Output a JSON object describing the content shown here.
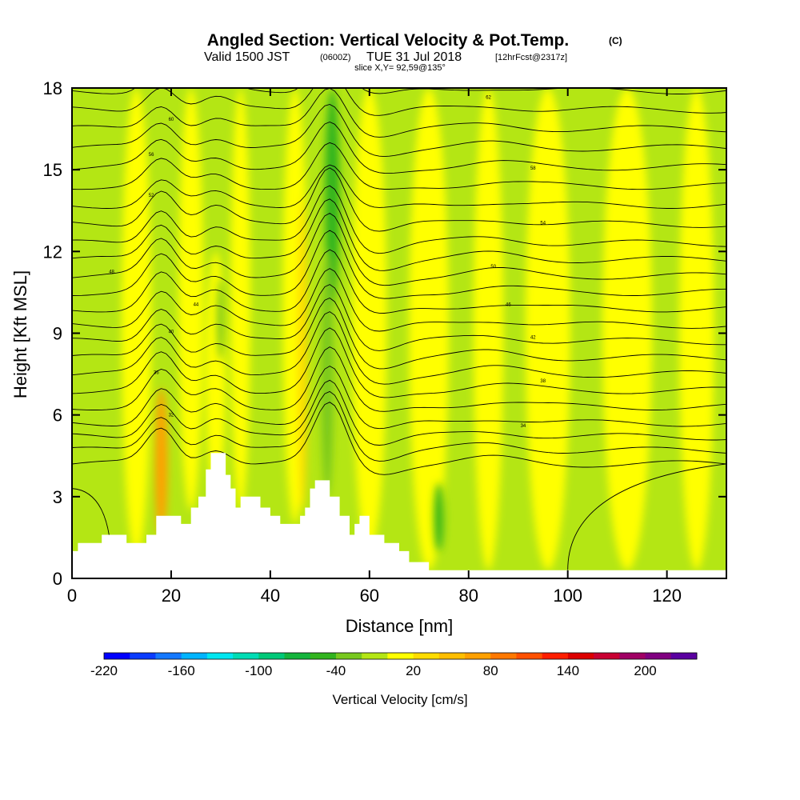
{
  "header": {
    "title": "Angled Section: Vertical Velocity & Pot.Temp.",
    "title_unit": "(C)",
    "valid_prefix": "Valid 1500 JST",
    "valid_utc": "(0600Z)",
    "valid_date": "TUE 31 Jul 2018",
    "forecast": "[12hrFcst@2317z]",
    "slice": "slice X,Y= 92,59@135°"
  },
  "chart_data": {
    "type": "heatmap",
    "xlabel": "Distance [nm]",
    "ylabel": "Height [Kft MSL]",
    "xlim": [
      0,
      132
    ],
    "ylim": [
      0,
      18
    ],
    "x_ticks": [
      0,
      20,
      40,
      60,
      80,
      100,
      120
    ],
    "y_ticks": [
      0,
      3,
      6,
      9,
      12,
      15,
      18
    ],
    "x_tick_labels": [
      "0",
      "20",
      "40",
      "60",
      "80",
      "100",
      "120"
    ],
    "y_tick_labels": [
      "0",
      "3",
      "6",
      "9",
      "12",
      "15",
      "18"
    ],
    "colorbar": {
      "title": "Vertical Velocity [cm/s]",
      "min": -220,
      "max": 240,
      "step": 20,
      "tick_values": [
        -220,
        -160,
        -100,
        -40,
        20,
        80,
        140,
        200
      ],
      "tick_labels": [
        "-220",
        "-160",
        "-100",
        "-40",
        "20",
        "80",
        "140",
        "200"
      ],
      "colors": [
        "#0000ff",
        "#0a3cff",
        "#1478ff",
        "#00b4ff",
        "#00e6f0",
        "#00dcb4",
        "#00c878",
        "#14b43c",
        "#32b41e",
        "#78c81e",
        "#b4e614",
        "#ffff00",
        "#ffdc00",
        "#ffbe00",
        "#ffa000",
        "#ff7800",
        "#ff5000",
        "#ff1e00",
        "#dc0000",
        "#c80032",
        "#a00064",
        "#800080",
        "#5a00a0"
      ]
    },
    "field_colors": {
      "background": "#b4e614",
      "updraft": "#ffff00",
      "strong_updraft": "#ffdc00",
      "core": "#ffa000",
      "downdraft": "#78c81e",
      "strong_downdraft": "#32b41e",
      "terrain": "#ffffff"
    },
    "updraft_columns": [
      {
        "x": 13,
        "ybot": 0.8,
        "ytop": 18,
        "w": 6,
        "kind": "updraft"
      },
      {
        "x": 18,
        "ybot": 1.5,
        "ytop": 7,
        "w": 2.5,
        "kind": "core"
      },
      {
        "x": 24,
        "ybot": 2.5,
        "ytop": 18,
        "w": 5,
        "kind": "updraft"
      },
      {
        "x": 29,
        "ybot": 3,
        "ytop": 12,
        "w": 4,
        "kind": "updraft"
      },
      {
        "x": 34,
        "ybot": 2.5,
        "ytop": 18,
        "w": 4,
        "kind": "updraft"
      },
      {
        "x": 45,
        "ybot": 2,
        "ytop": 18,
        "w": 5,
        "kind": "updraft"
      },
      {
        "x": 46.5,
        "ybot": 2.5,
        "ytop": 14,
        "w": 2,
        "kind": "strong_updraft"
      },
      {
        "x": 60,
        "ybot": 1,
        "ytop": 18,
        "w": 7,
        "kind": "updraft"
      },
      {
        "x": 72,
        "ybot": 0.3,
        "ytop": 18,
        "w": 8,
        "kind": "updraft"
      },
      {
        "x": 84,
        "ybot": 0.3,
        "ytop": 18,
        "w": 6,
        "kind": "updraft"
      },
      {
        "x": 96,
        "ybot": 0.3,
        "ytop": 18,
        "w": 9,
        "kind": "updraft"
      },
      {
        "x": 112,
        "ybot": 0.3,
        "ytop": 18,
        "w": 10,
        "kind": "updraft"
      },
      {
        "x": 126,
        "ybot": 0.3,
        "ytop": 18,
        "w": 7,
        "kind": "updraft"
      }
    ],
    "downdraft_columns": [
      {
        "x": 52.5,
        "ybot": 10,
        "ytop": 18,
        "w": 3,
        "kind": "strong_downdraft"
      },
      {
        "x": 51.5,
        "ybot": 3,
        "ytop": 12,
        "w": 2.5,
        "kind": "downdraft"
      },
      {
        "x": 74,
        "ybot": 1,
        "ytop": 3.5,
        "w": 2,
        "kind": "strong_downdraft"
      },
      {
        "x": 30,
        "ybot": 8,
        "ytop": 11,
        "w": 1.5,
        "kind": "downdraft"
      }
    ],
    "terrain_profile": [
      [
        0,
        1
      ],
      [
        1.2,
        1
      ],
      [
        1.2,
        1.3
      ],
      [
        6,
        1.3
      ],
      [
        6,
        1.6
      ],
      [
        11,
        1.6
      ],
      [
        11,
        1.3
      ],
      [
        15,
        1.3
      ],
      [
        15,
        1.6
      ],
      [
        17,
        1.6
      ],
      [
        17,
        2.3
      ],
      [
        22,
        2.3
      ],
      [
        22,
        2.0
      ],
      [
        24,
        2.0
      ],
      [
        24,
        2.6
      ],
      [
        25.5,
        2.6
      ],
      [
        25.5,
        3.0
      ],
      [
        27,
        3.0
      ],
      [
        27,
        4.0
      ],
      [
        28,
        4.0
      ],
      [
        28,
        4.6
      ],
      [
        31,
        4.6
      ],
      [
        31,
        3.8
      ],
      [
        32,
        3.8
      ],
      [
        32,
        3.3
      ],
      [
        33,
        3.3
      ],
      [
        33,
        2.6
      ],
      [
        34,
        2.6
      ],
      [
        34,
        3.0
      ],
      [
        38,
        3.0
      ],
      [
        38,
        2.6
      ],
      [
        40,
        2.6
      ],
      [
        40,
        2.3
      ],
      [
        42,
        2.3
      ],
      [
        42,
        2.0
      ],
      [
        46,
        2.0
      ],
      [
        46,
        2.3
      ],
      [
        47,
        2.3
      ],
      [
        47,
        2.6
      ],
      [
        48,
        2.6
      ],
      [
        48,
        3.3
      ],
      [
        49,
        3.3
      ],
      [
        49,
        3.6
      ],
      [
        52,
        3.6
      ],
      [
        52,
        3.0
      ],
      [
        54,
        3.0
      ],
      [
        54,
        2.3
      ],
      [
        56,
        2.3
      ],
      [
        56,
        1.6
      ],
      [
        57,
        1.6
      ],
      [
        57,
        2.0
      ],
      [
        58,
        2.0
      ],
      [
        58,
        2.3
      ],
      [
        60,
        2.3
      ],
      [
        60,
        1.6
      ],
      [
        63,
        1.6
      ],
      [
        63,
        1.3
      ],
      [
        66,
        1.3
      ],
      [
        66,
        1.0
      ],
      [
        68,
        1.0
      ],
      [
        68,
        0.6
      ],
      [
        72,
        0.6
      ],
      [
        72,
        0.3
      ],
      [
        132,
        0.3
      ],
      [
        132,
        0
      ]
    ],
    "isentrope_labels": [
      "32",
      "34",
      "36",
      "38",
      "40",
      "42",
      "44",
      "46",
      "48",
      "50",
      "52",
      "54",
      "56",
      "58",
      "60",
      "62"
    ],
    "isentrope_levels": [
      4.2,
      4.7,
      5.2,
      5.7,
      6.3,
      6.9,
      7.5,
      8.1,
      8.7,
      9.3,
      9.9,
      10.5,
      11.1,
      11.7,
      12.3,
      13.0,
      13.7,
      14.4,
      15.1,
      15.8,
      16.5,
      17.2,
      17.9
    ],
    "title": "Angled Section: Vertical Velocity & Pot.Temp."
  }
}
